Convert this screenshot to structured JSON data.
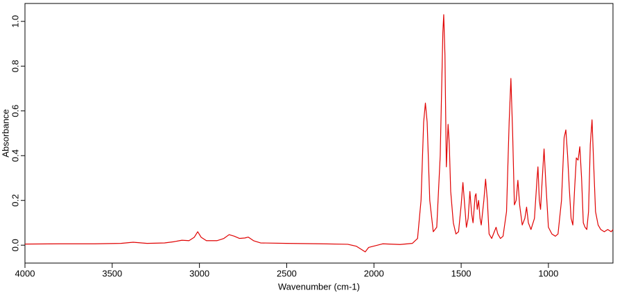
{
  "chart_data": {
    "type": "line",
    "xlabel": "Wavenumber (cm-1)",
    "ylabel": "Absorbance",
    "x": [
      4000,
      3800,
      3600,
      3450,
      3380,
      3300,
      3200,
      3150,
      3100,
      3060,
      3030,
      3010,
      2990,
      2960,
      2900,
      2860,
      2830,
      2800,
      2770,
      2740,
      2720,
      2690,
      2650,
      2500,
      2300,
      2150,
      2100,
      2070,
      2050,
      2030,
      1950,
      1850,
      1780,
      1750,
      1730,
      1715,
      1705,
      1695,
      1680,
      1660,
      1640,
      1620,
      1605,
      1600,
      1593,
      1585,
      1575,
      1568,
      1560,
      1545,
      1530,
      1515,
      1500,
      1490,
      1480,
      1470,
      1460,
      1450,
      1440,
      1432,
      1420,
      1415,
      1408,
      1400,
      1392,
      1385,
      1370,
      1360,
      1350,
      1340,
      1325,
      1310,
      1300,
      1290,
      1275,
      1260,
      1240,
      1225,
      1215,
      1205,
      1195,
      1185,
      1175,
      1165,
      1150,
      1135,
      1125,
      1115,
      1100,
      1080,
      1065,
      1060,
      1052,
      1045,
      1035,
      1025,
      1015,
      1000,
      980,
      960,
      945,
      925,
      910,
      900,
      890,
      880,
      870,
      860,
      850,
      840,
      830,
      820,
      810,
      800,
      790,
      780,
      770,
      760,
      750,
      740,
      730,
      715,
      700,
      680,
      660,
      640,
      630
    ],
    "values": [
      0.005,
      0.006,
      0.006,
      0.008,
      0.013,
      0.008,
      0.01,
      0.015,
      0.022,
      0.02,
      0.035,
      0.06,
      0.035,
      0.02,
      0.02,
      0.03,
      0.047,
      0.04,
      0.03,
      0.032,
      0.036,
      0.02,
      0.01,
      0.008,
      0.006,
      0.004,
      -0.005,
      -0.02,
      -0.03,
      -0.01,
      0.006,
      0.003,
      0.008,
      0.03,
      0.2,
      0.55,
      0.635,
      0.55,
      0.2,
      0.06,
      0.08,
      0.4,
      0.95,
      1.03,
      0.85,
      0.35,
      0.54,
      0.45,
      0.24,
      0.1,
      0.05,
      0.06,
      0.18,
      0.28,
      0.18,
      0.08,
      0.12,
      0.24,
      0.14,
      0.1,
      0.22,
      0.23,
      0.16,
      0.2,
      0.12,
      0.09,
      0.2,
      0.295,
      0.2,
      0.05,
      0.03,
      0.06,
      0.08,
      0.05,
      0.03,
      0.04,
      0.15,
      0.55,
      0.745,
      0.5,
      0.18,
      0.2,
      0.29,
      0.18,
      0.09,
      0.12,
      0.17,
      0.1,
      0.07,
      0.12,
      0.3,
      0.35,
      0.2,
      0.16,
      0.3,
      0.43,
      0.28,
      0.08,
      0.05,
      0.04,
      0.05,
      0.2,
      0.48,
      0.515,
      0.4,
      0.25,
      0.12,
      0.09,
      0.25,
      0.39,
      0.38,
      0.44,
      0.3,
      0.1,
      0.08,
      0.07,
      0.15,
      0.45,
      0.56,
      0.35,
      0.15,
      0.09,
      0.07,
      0.06,
      0.07,
      0.06,
      0.07
    ],
    "color": "#e00000",
    "xlim": [
      4000,
      630
    ],
    "ylim": [
      -0.08,
      1.08
    ],
    "xticks": [
      4000,
      3500,
      3000,
      2500,
      2000,
      1500,
      1000
    ],
    "yticks": [
      {
        "value": 0,
        "label": "0.0"
      },
      0.2,
      0.4,
      0.6,
      0.8,
      {
        "value": 1,
        "label": "1.0"
      }
    ],
    "grid": false
  }
}
